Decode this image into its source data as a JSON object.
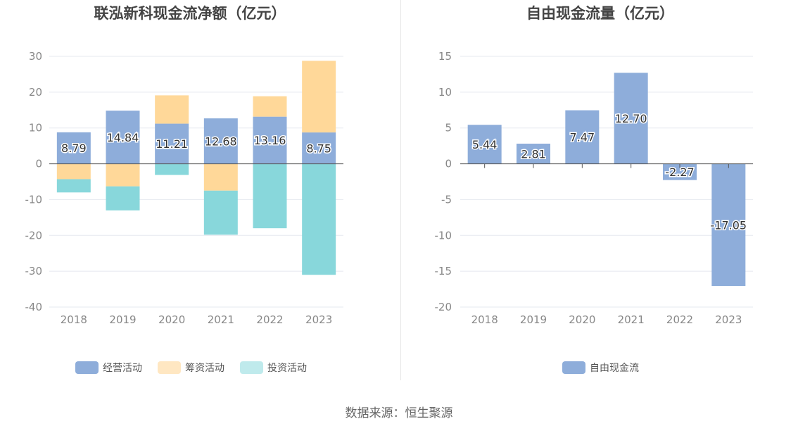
{
  "source_text": "数据来源：恒生聚源",
  "chart_data": [
    {
      "type": "bar",
      "stacked": true,
      "title": "联泓新科现金流净额（亿元）",
      "categories": [
        "2018",
        "2019",
        "2020",
        "2021",
        "2022",
        "2023"
      ],
      "ylim": [
        -40,
        30
      ],
      "yticks": [
        30,
        20,
        10,
        0,
        -10,
        -20,
        -30,
        -40
      ],
      "grid": true,
      "legend_position": "bottom",
      "series": [
        {
          "name": "经营活动",
          "color": "#8eadda",
          "values": [
            8.79,
            14.84,
            11.21,
            12.68,
            13.16,
            8.75
          ],
          "labels": [
            "8.79",
            "14.84",
            "11.21",
            "12.68",
            "13.16",
            "8.75"
          ],
          "legend_color": "#8eadda"
        },
        {
          "name": "筹资活动",
          "color": "#ffd899",
          "values": [
            -4.3,
            -6.3,
            7.9,
            -7.5,
            5.7,
            20.0
          ],
          "legend_color": "#ffe7c2"
        },
        {
          "name": "投资活动",
          "color": "#88d7db",
          "values": [
            -3.7,
            -6.7,
            -3.1,
            -12.3,
            -18.0,
            -31.0
          ],
          "legend_color": "#bfeaec"
        }
      ]
    },
    {
      "type": "bar",
      "title": "自由现金流量（亿元）",
      "categories": [
        "2018",
        "2019",
        "2020",
        "2021",
        "2022",
        "2023"
      ],
      "ylim": [
        -20,
        15
      ],
      "yticks": [
        15,
        10,
        5,
        0,
        -5,
        -10,
        -15,
        -20
      ],
      "grid": true,
      "legend_position": "bottom",
      "series": [
        {
          "name": "自由现金流",
          "color": "#8eadda",
          "values": [
            5.44,
            2.81,
            7.47,
            12.7,
            -2.27,
            -17.05
          ],
          "labels": [
            "5.44",
            "2.81",
            "7.47",
            "12.70",
            "-2.27",
            "-17.05"
          ],
          "legend_color": "#8eadda"
        }
      ]
    }
  ]
}
